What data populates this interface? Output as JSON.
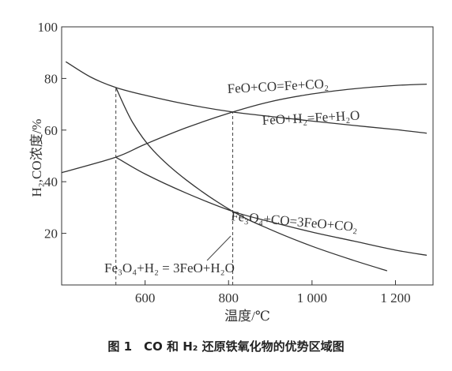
{
  "chart_data": {
    "type": "line",
    "caption": "图 1　CO 和 H₂ 还原铁氧化物的优势区域图",
    "xlabel": "温度/℃",
    "ylabel": "H₂,CO浓度/%",
    "xlim": [
      400,
      1290
    ],
    "ylim": [
      0,
      100
    ],
    "x_ticks": [
      600,
      800,
      1000,
      1200
    ],
    "x_tick_labels": [
      "600",
      "800",
      "1 000",
      "1 200"
    ],
    "y_ticks": [
      20,
      40,
      60,
      80,
      100
    ],
    "y_tick_labels": [
      "20",
      "40",
      "60",
      "80",
      "100"
    ],
    "grid": false,
    "series": [
      {
        "name": "FeO+CO=Fe+CO₂",
        "x": [
          400,
          530,
          600,
          700,
          810,
          900,
          1000,
          1100,
          1200,
          1275
        ],
        "y": [
          43.5,
          49.5,
          54.5,
          61,
          67,
          71,
          74,
          76,
          77.3,
          77.8
        ]
      },
      {
        "name": "FeO+H₂=Fe+H₂O",
        "x": [
          410,
          470,
          530,
          600,
          700,
          810,
          900,
          1000,
          1100,
          1200,
          1275
        ],
        "y": [
          86.5,
          80.5,
          76.5,
          73.5,
          70,
          67,
          65.3,
          63.5,
          61.8,
          60.2,
          58.8
        ]
      },
      {
        "name": "Fe₃O₄+CO=3FeO+CO₂",
        "x": [
          530,
          600,
          700,
          810,
          900,
          1000,
          1100,
          1200,
          1275
        ],
        "y": [
          49.5,
          43,
          35.5,
          28.5,
          24.5,
          20.5,
          17,
          13.5,
          11.5
        ]
      },
      {
        "name": "Fe₃O₄+H₂ = 3FeO+H₂O",
        "x": [
          530,
          570,
          620,
          700,
          810,
          900,
          1000,
          1100,
          1180
        ],
        "y": [
          76.5,
          63,
          52,
          40.5,
          28.5,
          21.5,
          15,
          9.5,
          5.5
        ]
      }
    ],
    "reference_lines": [
      {
        "x": 530,
        "y_from": 0,
        "y_to": 76.5
      },
      {
        "x": 810,
        "y_from": 0,
        "y_to": 67
      }
    ]
  }
}
